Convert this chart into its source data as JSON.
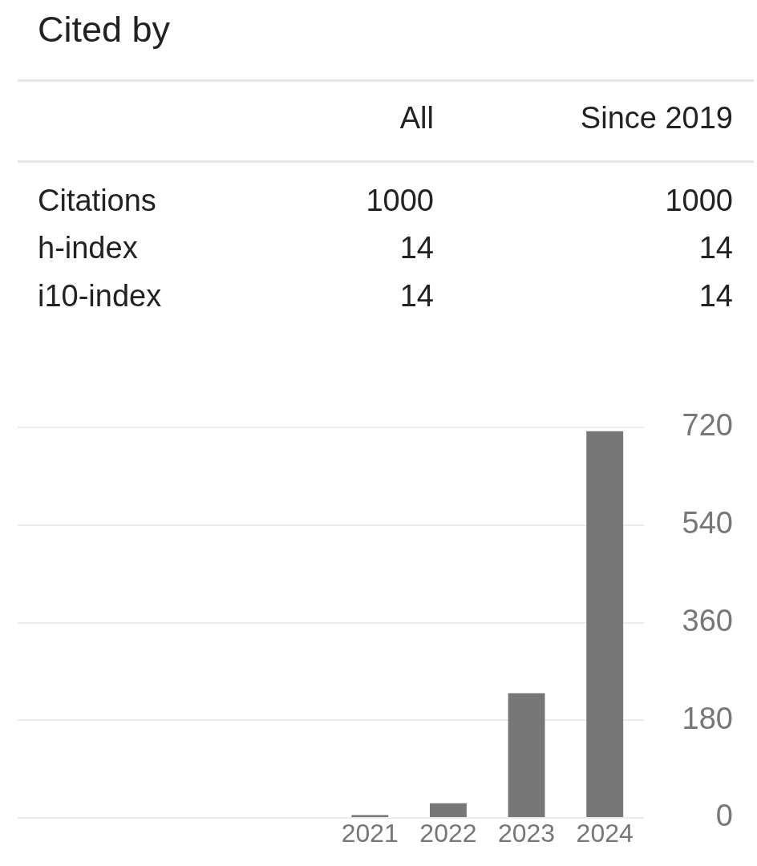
{
  "chart_data": [
    {
      "type": "other",
      "title": "Cited by",
      "categories": [
        "All",
        "Since 2019"
      ],
      "y_categories": [
        "Citations",
        "h-index",
        "i10-index"
      ],
      "cell_labels": [
        [
          "1000",
          "1000"
        ],
        [
          "14",
          "14"
        ],
        [
          "14",
          "14"
        ]
      ]
    },
    {
      "type": "bar",
      "categories": [
        null,
        null,
        null,
        null,
        "2021",
        "2022",
        "2023",
        "2024"
      ],
      "values": [
        null,
        null,
        null,
        null,
        5,
        27,
        230,
        713
      ],
      "color": "#777777",
      "ylim": [
        0,
        720
      ],
      "yticks": [
        0,
        180,
        360,
        540,
        720
      ],
      "grid": "y"
    }
  ]
}
